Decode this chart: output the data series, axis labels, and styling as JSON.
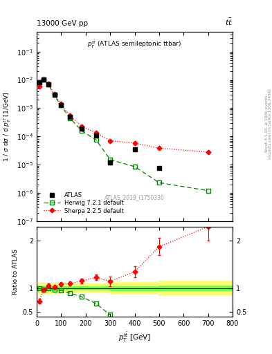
{
  "atlas_x": [
    10,
    27.5,
    47.5,
    72.5,
    97.5,
    135,
    185,
    242.5,
    300,
    400,
    500,
    700
  ],
  "atlas_y": [
    0.008,
    0.0105,
    0.0068,
    0.003,
    0.0013,
    0.0005,
    0.00019,
    0.00011,
    1.2e-05,
    3.5e-05,
    7.5e-06,
    0
  ],
  "atlas_yerr_lo": [
    0.0004,
    0.0005,
    0.0003,
    0.00015,
    6e-05,
    2.5e-05,
    1e-05,
    6e-06,
    2e-06,
    2e-06,
    8e-07,
    0
  ],
  "atlas_yerr_hi": [
    0.0004,
    0.0005,
    0.0003,
    0.00015,
    6e-05,
    2.5e-05,
    1e-05,
    6e-06,
    2e-06,
    2e-06,
    8e-07,
    0
  ],
  "herwig_x": [
    10,
    27.5,
    47.5,
    72.5,
    97.5,
    135,
    185,
    242.5,
    300,
    400,
    500,
    700
  ],
  "herwig_y": [
    0.008,
    0.0102,
    0.0068,
    0.0029,
    0.00125,
    0.00045,
    0.000155,
    7.5e-05,
    1.5e-05,
    8.5e-06,
    2.3e-06,
    1.2e-06
  ],
  "sherpa_x": [
    10,
    27.5,
    47.5,
    72.5,
    97.5,
    135,
    185,
    242.5,
    300,
    400,
    500,
    700
  ],
  "sherpa_y": [
    0.006,
    0.0102,
    0.0072,
    0.0031,
    0.00142,
    0.00055,
    0.00022,
    0.000135,
    7e-05,
    5.8e-05,
    3.8e-05,
    2.8e-05
  ],
  "herwig_ratio_x": [
    10,
    27.5,
    47.5,
    72.5,
    97.5,
    135,
    185,
    242.5,
    300
  ],
  "herwig_ratio_y": [
    1.0,
    0.97,
    1.0,
    0.97,
    0.96,
    0.9,
    0.82,
    0.68,
    0.44
  ],
  "sherpa_ratio_x": [
    10,
    27.5,
    47.5,
    72.5,
    97.5,
    135,
    185,
    242.5,
    300,
    400,
    500,
    700
  ],
  "sherpa_ratio_y": [
    0.73,
    0.97,
    1.06,
    1.03,
    1.09,
    1.1,
    1.16,
    1.23,
    1.15,
    1.35,
    1.88,
    2.3
  ],
  "sherpa_ratio_yerr": [
    0.05,
    0.04,
    0.04,
    0.03,
    0.03,
    0.04,
    0.05,
    0.06,
    0.1,
    0.12,
    0.18,
    0.3
  ],
  "band_edges": [
    0,
    100,
    300,
    500,
    800
  ],
  "band_green": [
    0.05,
    0.04,
    0.05,
    0.06
  ],
  "band_yellow": [
    0.12,
    0.1,
    0.13,
    0.16
  ],
  "xlim": [
    0,
    800
  ],
  "ylim_main_lo": 1e-07,
  "ylim_main_hi": 0.5,
  "ylim_ratio_lo": 0.4,
  "ylim_ratio_hi": 2.3
}
